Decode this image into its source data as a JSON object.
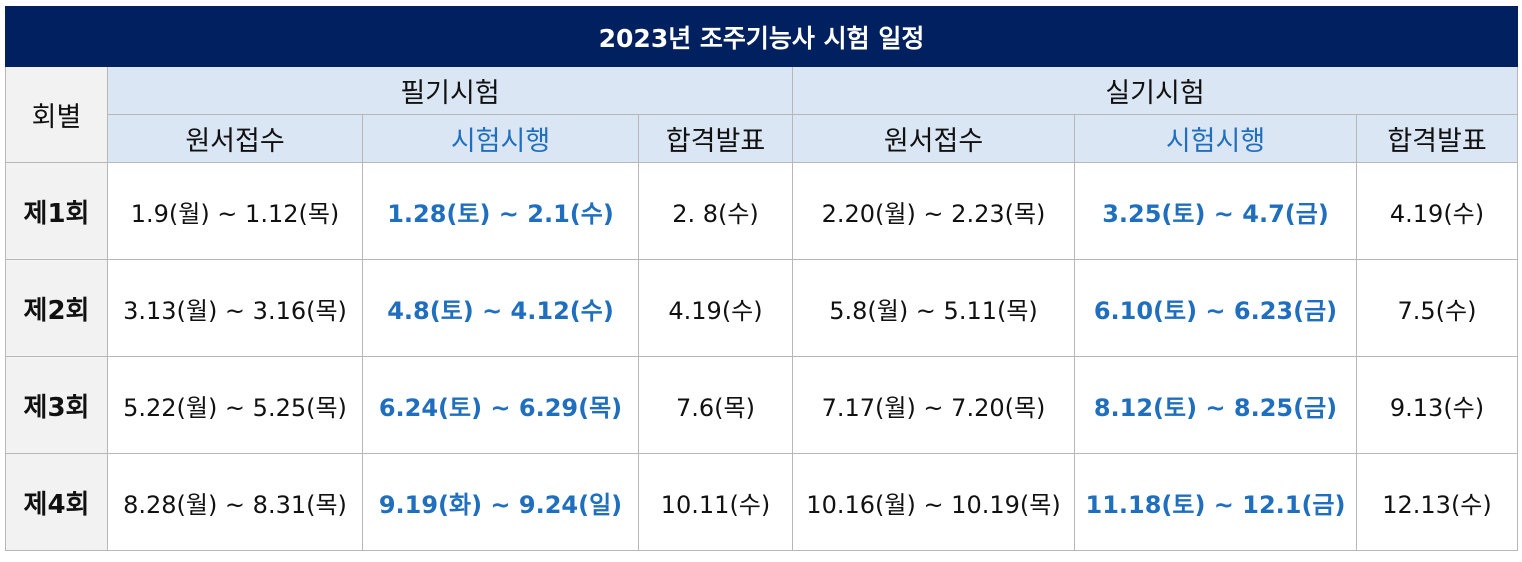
{
  "title": "2023년 조주기능사 시험 일정",
  "header": {
    "round": "회별",
    "written": "필기시험",
    "practical": "실기시험",
    "apply": "원서접수",
    "exam": "시험시행",
    "result": "합격발표"
  },
  "rows": [
    {
      "round": "제1회",
      "written_apply": "1.9(월) ~ 1.12(목)",
      "written_exam": "1.28(토) ~ 2.1(수)",
      "written_result": "2. 8(수)",
      "practical_apply": "2.20(월) ~ 2.23(목)",
      "practical_exam": "3.25(토) ~ 4.7(금)",
      "practical_result": "4.19(수)"
    },
    {
      "round": "제2회",
      "written_apply": "3.13(월) ~ 3.16(목)",
      "written_exam": "4.8(토) ~ 4.12(수)",
      "written_result": "4.19(수)",
      "practical_apply": "5.8(월) ~ 5.11(목)",
      "practical_exam": "6.10(토) ~ 6.23(금)",
      "practical_result": "7.5(수)"
    },
    {
      "round": "제3회",
      "written_apply": "5.22(월) ~ 5.25(목)",
      "written_exam": "6.24(토) ~ 6.29(목)",
      "written_result": "7.6(목)",
      "practical_apply": "7.17(월) ~ 7.20(목)",
      "practical_exam": "8.12(토) ~ 8.25(금)",
      "practical_result": "9.13(수)"
    },
    {
      "round": "제4회",
      "written_apply": "8.28(월) ~ 8.31(목)",
      "written_exam": "9.19(화) ~ 9.24(일)",
      "written_result": "10.11(수)",
      "practical_apply": "10.16(월) ~ 10.19(목)",
      "practical_exam": "11.18(토) ~ 12.1(금)",
      "practical_result": "12.13(수)"
    }
  ],
  "colors": {
    "title_bg": "#012060",
    "header_bg": "#dbe6f4",
    "round_bg": "#f2f2f2",
    "exam_text": "#1f6fbe"
  }
}
